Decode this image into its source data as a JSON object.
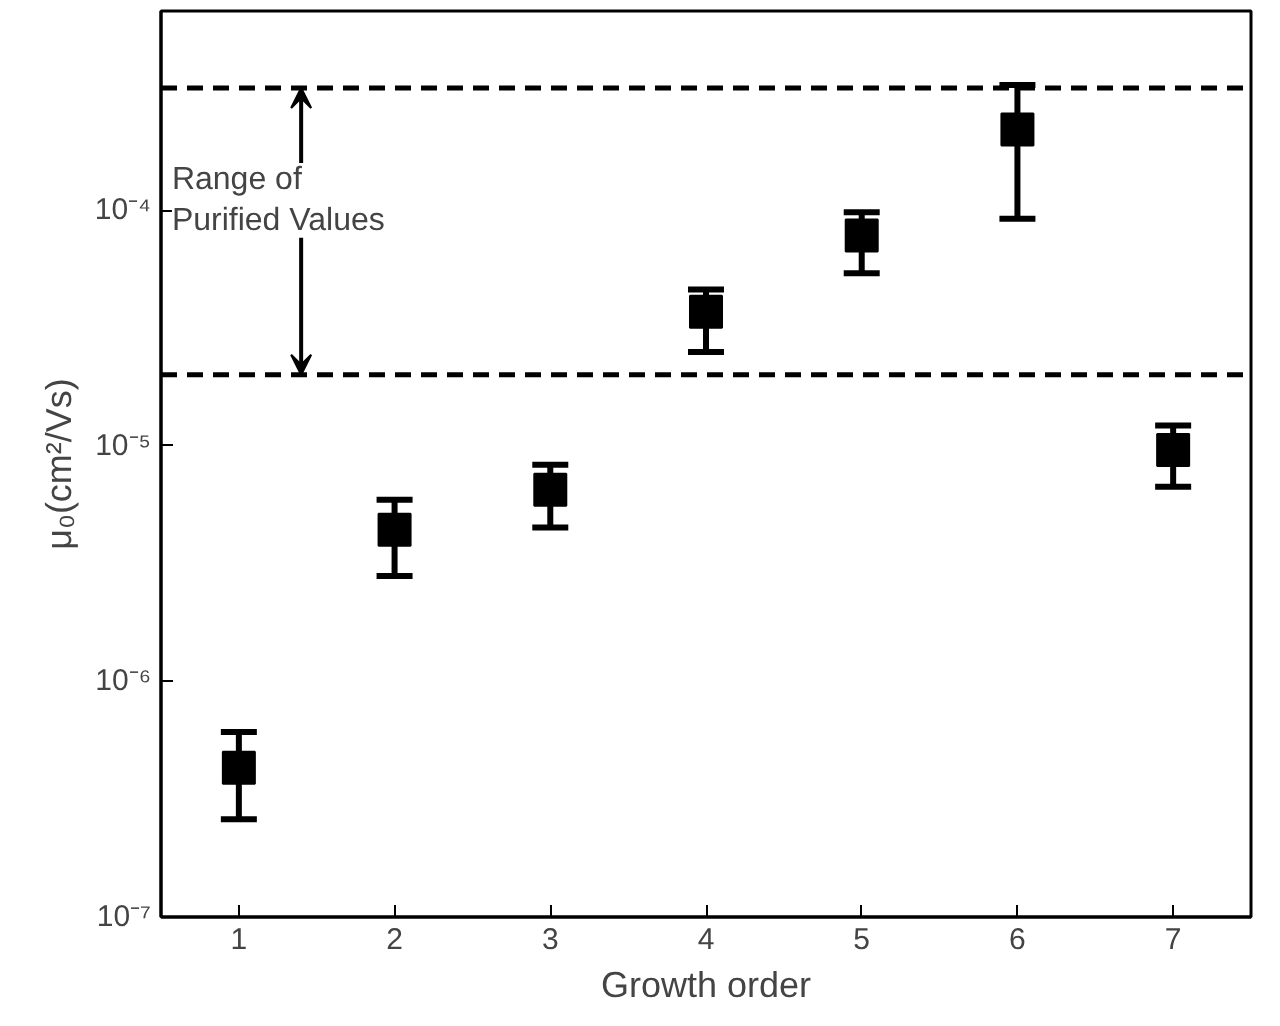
{
  "chart_data": {
    "type": "scatter",
    "xlabel": "Growth order",
    "ylabel": "μ₀(cm²/Vs)",
    "log": "y",
    "grid": false,
    "marker": "square",
    "color": "#000000",
    "x": [
      1,
      2,
      3,
      4,
      5,
      6,
      7
    ],
    "values": [
      4.3e-07,
      4.4e-06,
      6.5e-06,
      3.7e-05,
      7.8e-05,
      0.00022,
      9.6e-06
    ],
    "errors": [
      [
        2.6e-07,
        6.1e-07
      ],
      [
        2.8e-06,
        5.9e-06
      ],
      [
        4.5e-06,
        8.3e-06
      ],
      [
        2.5e-05,
        4.6e-05
      ],
      [
        5.4e-05,
        9.8e-05
      ],
      [
        9.2e-05,
        0.00034
      ],
      [
        6.7e-06,
        1.22e-05
      ]
    ],
    "xlim": [
      0.5,
      7.5
    ],
    "xticks": [
      1,
      2,
      3,
      4,
      5,
      6,
      7
    ],
    "ylim": [
      1e-07,
      0.0007
    ],
    "yticks": [
      {
        "value": 1e-07,
        "label": "10⁻⁷"
      },
      {
        "value": 1e-06,
        "label": "10⁻⁶"
      },
      {
        "value": 1e-05,
        "label": "10⁻⁵"
      },
      {
        "value": 0.0001,
        "label": "10⁻⁴"
      }
    ],
    "ref_lines": [
      {
        "axis": "y",
        "value": 0.00033,
        "color": "#000000",
        "line_style": "dashed"
      },
      {
        "axis": "y",
        "value": 2e-05,
        "color": "#000000",
        "line_style": "dashed"
      }
    ],
    "annotations": [
      "Range of\nPurified Values"
    ]
  }
}
